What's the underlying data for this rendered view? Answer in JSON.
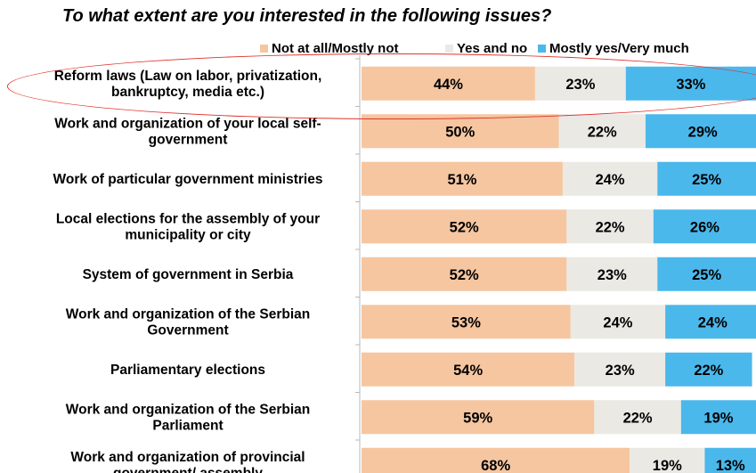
{
  "chart_data": {
    "type": "bar",
    "orientation": "horizontal",
    "stacked": true,
    "percent_stacked": true,
    "title": "To what extent are you interested in the following issues?",
    "legend_position": "top",
    "categories": [
      [
        "Reform laws (Law on labor, privatization,",
        "bankruptcy, media etc.)"
      ],
      [
        "Work and organization of your local self-",
        "government"
      ],
      [
        "Work of particular government ministries"
      ],
      [
        "Local elections for the assembly of your",
        "municipality or city"
      ],
      [
        "System of government in Serbia"
      ],
      [
        "Work and organization of the Serbian",
        "Government"
      ],
      [
        "Parliamentary elections"
      ],
      [
        "Work and organization of the Serbian",
        "Parliament"
      ],
      [
        "Work and organization of provincial",
        "government/ assembly"
      ]
    ],
    "series": [
      {
        "name": "Not at all/Mostly not",
        "color": "#f6c6a0",
        "values": [
          44,
          50,
          51,
          52,
          52,
          53,
          54,
          59,
          68
        ]
      },
      {
        "name": "Yes and no",
        "color": "#ebe9e4",
        "values": [
          23,
          22,
          24,
          22,
          23,
          24,
          23,
          22,
          19
        ]
      },
      {
        "name": "Mostly yes/Very much",
        "color": "#4bb8ec",
        "values": [
          33,
          29,
          25,
          26,
          25,
          24,
          22,
          19,
          13
        ]
      }
    ],
    "value_suffix": "%",
    "highlighted_category_index": 0,
    "highlight_color": "#e0322e"
  }
}
